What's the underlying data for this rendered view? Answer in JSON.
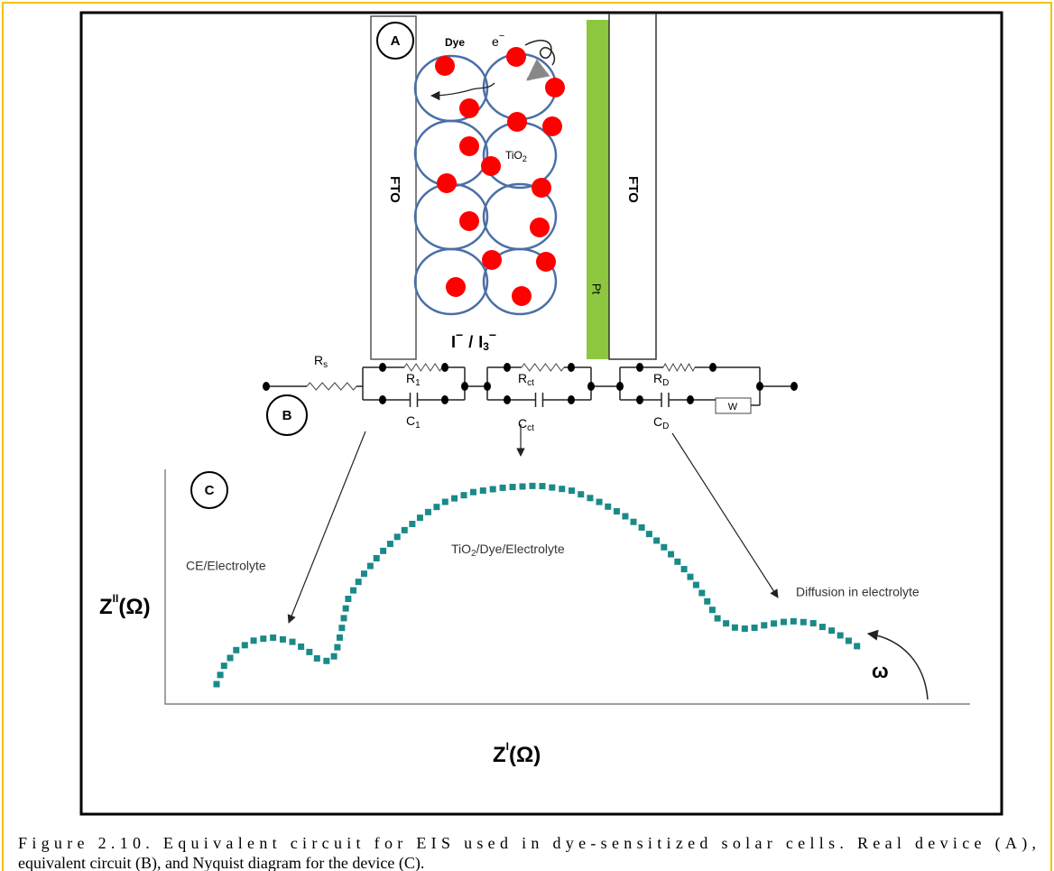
{
  "device": {
    "panel_label": "A",
    "dye": "Dye",
    "electron": {
      "text": "e",
      "sup": "−"
    },
    "fto_left": "FTO",
    "tio2": {
      "text": "TiO",
      "sub": "2"
    },
    "pt": "Pt",
    "fto_right": "FTO",
    "electrolyte": {
      "ion1": "I",
      "ion1_charge": "−",
      "separator": "/",
      "ion2": "I",
      "ion2_sub": "3",
      "ion2_charge": "−"
    }
  },
  "circuit": {
    "panel_label": "B",
    "rs": {
      "text": "R",
      "sub": "s"
    },
    "r1": {
      "text": "R",
      "sub": "1"
    },
    "c1": {
      "text": "C",
      "sub": "1"
    },
    "rct": {
      "text": "R",
      "sub": "ct"
    },
    "cct": {
      "text": "C",
      "sub": "ct"
    },
    "rd": {
      "text": "R",
      "sub": "D"
    },
    "cd": {
      "text": "C",
      "sub": "D"
    },
    "w": "W"
  },
  "nyquist": {
    "panel_label": "C",
    "region1": "CE/Electrolyte",
    "region2": {
      "text": "TiO",
      "sub": "2",
      "rest": "/Dye/Electrolyte"
    },
    "region3": "Diffusion in electrolyte",
    "y_label": {
      "text": "Z",
      "sup": "II",
      "unit": "(Ω)"
    },
    "x_label": {
      "text": "Z",
      "sup": "I",
      "unit": "(Ω)"
    },
    "omega": "ω"
  },
  "caption": {
    "lines": [
      "Figure 2.10.  Equivalent circuit for EIS used in dye-sensitized solar cells. Real device (A),",
      "equivalent circuit (B), and Nyquist diagram for the device (C)."
    ]
  }
}
